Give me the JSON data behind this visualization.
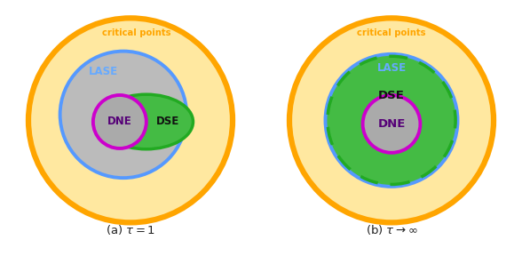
{
  "fig_width": 5.88,
  "fig_height": 2.88,
  "dpi": 100,
  "colors": {
    "orange_edge": "#FFA500",
    "yellow_fill": "#FFE8A0",
    "blue": "#5599FF",
    "gray_fill": "#BBBBBB",
    "green_dark": "#22AA22",
    "green_fill": "#44BB44",
    "green_light": "#99EE55",
    "magenta": "#CC00CC",
    "gray_dne_fill": "#AAAAAA",
    "white": "#FFFFFF",
    "caption_color": "#222222",
    "lase_color": "#66AAFF",
    "dne_label_color": "#550077",
    "dse_label_color": "#111111",
    "dse_b_label_color": "#111111"
  },
  "caption_a": "(a) $\\tau = 1$",
  "caption_b": "(b) $\\tau \\to \\infty$",
  "label_critical": "critical points",
  "label_lase": "LASE",
  "label_dne": "DNE",
  "label_dse": "DSE"
}
